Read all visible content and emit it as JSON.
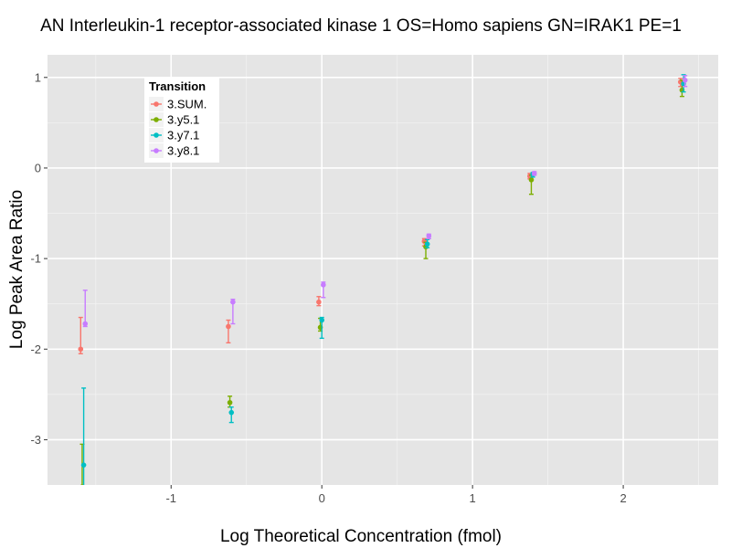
{
  "chart_data": {
    "type": "scatter",
    "title": "AN Interleukin-1 receptor-associated kinase 1 OS=Homo sapiens GN=IRAK1 PE=1",
    "xlabel": "Log Theoretical Concentration (fmol)",
    "ylabel": "Log Peak Area Ratio",
    "xlim": [
      -1.82,
      2.63
    ],
    "ylim": [
      -3.5,
      1.25
    ],
    "x_ticks": [
      -1,
      0,
      1,
      2
    ],
    "y_ticks": [
      -3,
      -2,
      -1,
      0,
      1
    ],
    "x_tick_labels": [
      "-1",
      "0",
      "1",
      "2"
    ],
    "y_tick_labels": [
      "-3",
      "-2",
      "-1",
      "0",
      "1"
    ],
    "grid": true,
    "legend": {
      "title": "Transition",
      "position": "top-left"
    },
    "series": [
      {
        "name": "3.SUM.",
        "color": "#F8766D",
        "points": [
          {
            "x": -1.6,
            "y": -2.0,
            "ylo": -2.05,
            "yhi": -1.65
          },
          {
            "x": -0.62,
            "y": -1.75,
            "ylo": -1.93,
            "yhi": -1.68
          },
          {
            "x": -0.02,
            "y": -1.48,
            "ylo": -1.52,
            "yhi": -1.42
          },
          {
            "x": 0.68,
            "y": -0.81,
            "ylo": -0.86,
            "yhi": -0.78
          },
          {
            "x": 1.38,
            "y": -0.09,
            "ylo": -0.12,
            "yhi": -0.06
          },
          {
            "x": 2.38,
            "y": 0.95,
            "ylo": 0.9,
            "yhi": 0.99
          }
        ]
      },
      {
        "name": "3.y5.1",
        "color": "#7CAE00",
        "points": [
          {
            "x": -1.59,
            "y": -3.52,
            "ylo": -3.55,
            "yhi": -3.05
          },
          {
            "x": -0.61,
            "y": -2.59,
            "ylo": -2.64,
            "yhi": -2.52
          },
          {
            "x": -0.01,
            "y": -1.76,
            "ylo": -1.8,
            "yhi": -1.66
          },
          {
            "x": 0.69,
            "y": -0.87,
            "ylo": -1.0,
            "yhi": -0.82
          },
          {
            "x": 1.39,
            "y": -0.13,
            "ylo": -0.29,
            "yhi": -0.08
          },
          {
            "x": 2.39,
            "y": 0.86,
            "ylo": 0.79,
            "yhi": 0.97
          }
        ]
      },
      {
        "name": "3.y7.1",
        "color": "#00BFC4",
        "points": [
          {
            "x": -1.58,
            "y": -3.28,
            "ylo": -3.55,
            "yhi": -2.43
          },
          {
            "x": -0.6,
            "y": -2.7,
            "ylo": -2.81,
            "yhi": -2.64
          },
          {
            "x": 0.0,
            "y": -1.68,
            "ylo": -1.88,
            "yhi": -1.65
          },
          {
            "x": 0.7,
            "y": -0.84,
            "ylo": -0.88,
            "yhi": -0.79
          },
          {
            "x": 1.4,
            "y": -0.07,
            "ylo": -0.1,
            "yhi": -0.05
          },
          {
            "x": 2.4,
            "y": 0.93,
            "ylo": 0.84,
            "yhi": 1.03
          }
        ]
      },
      {
        "name": "3.y8.1",
        "color": "#C77CFF",
        "points": [
          {
            "x": -1.57,
            "y": -1.72,
            "ylo": -1.75,
            "yhi": -1.35
          },
          {
            "x": -0.59,
            "y": -1.48,
            "ylo": -1.72,
            "yhi": -1.45
          },
          {
            "x": 0.01,
            "y": -1.29,
            "ylo": -1.43,
            "yhi": -1.26
          },
          {
            "x": 0.71,
            "y": -0.75,
            "ylo": -0.78,
            "yhi": -0.73
          },
          {
            "x": 1.41,
            "y": -0.06,
            "ylo": -0.08,
            "yhi": -0.04
          },
          {
            "x": 2.41,
            "y": 0.97,
            "ylo": 0.9,
            "yhi": 1.02
          }
        ]
      }
    ]
  }
}
